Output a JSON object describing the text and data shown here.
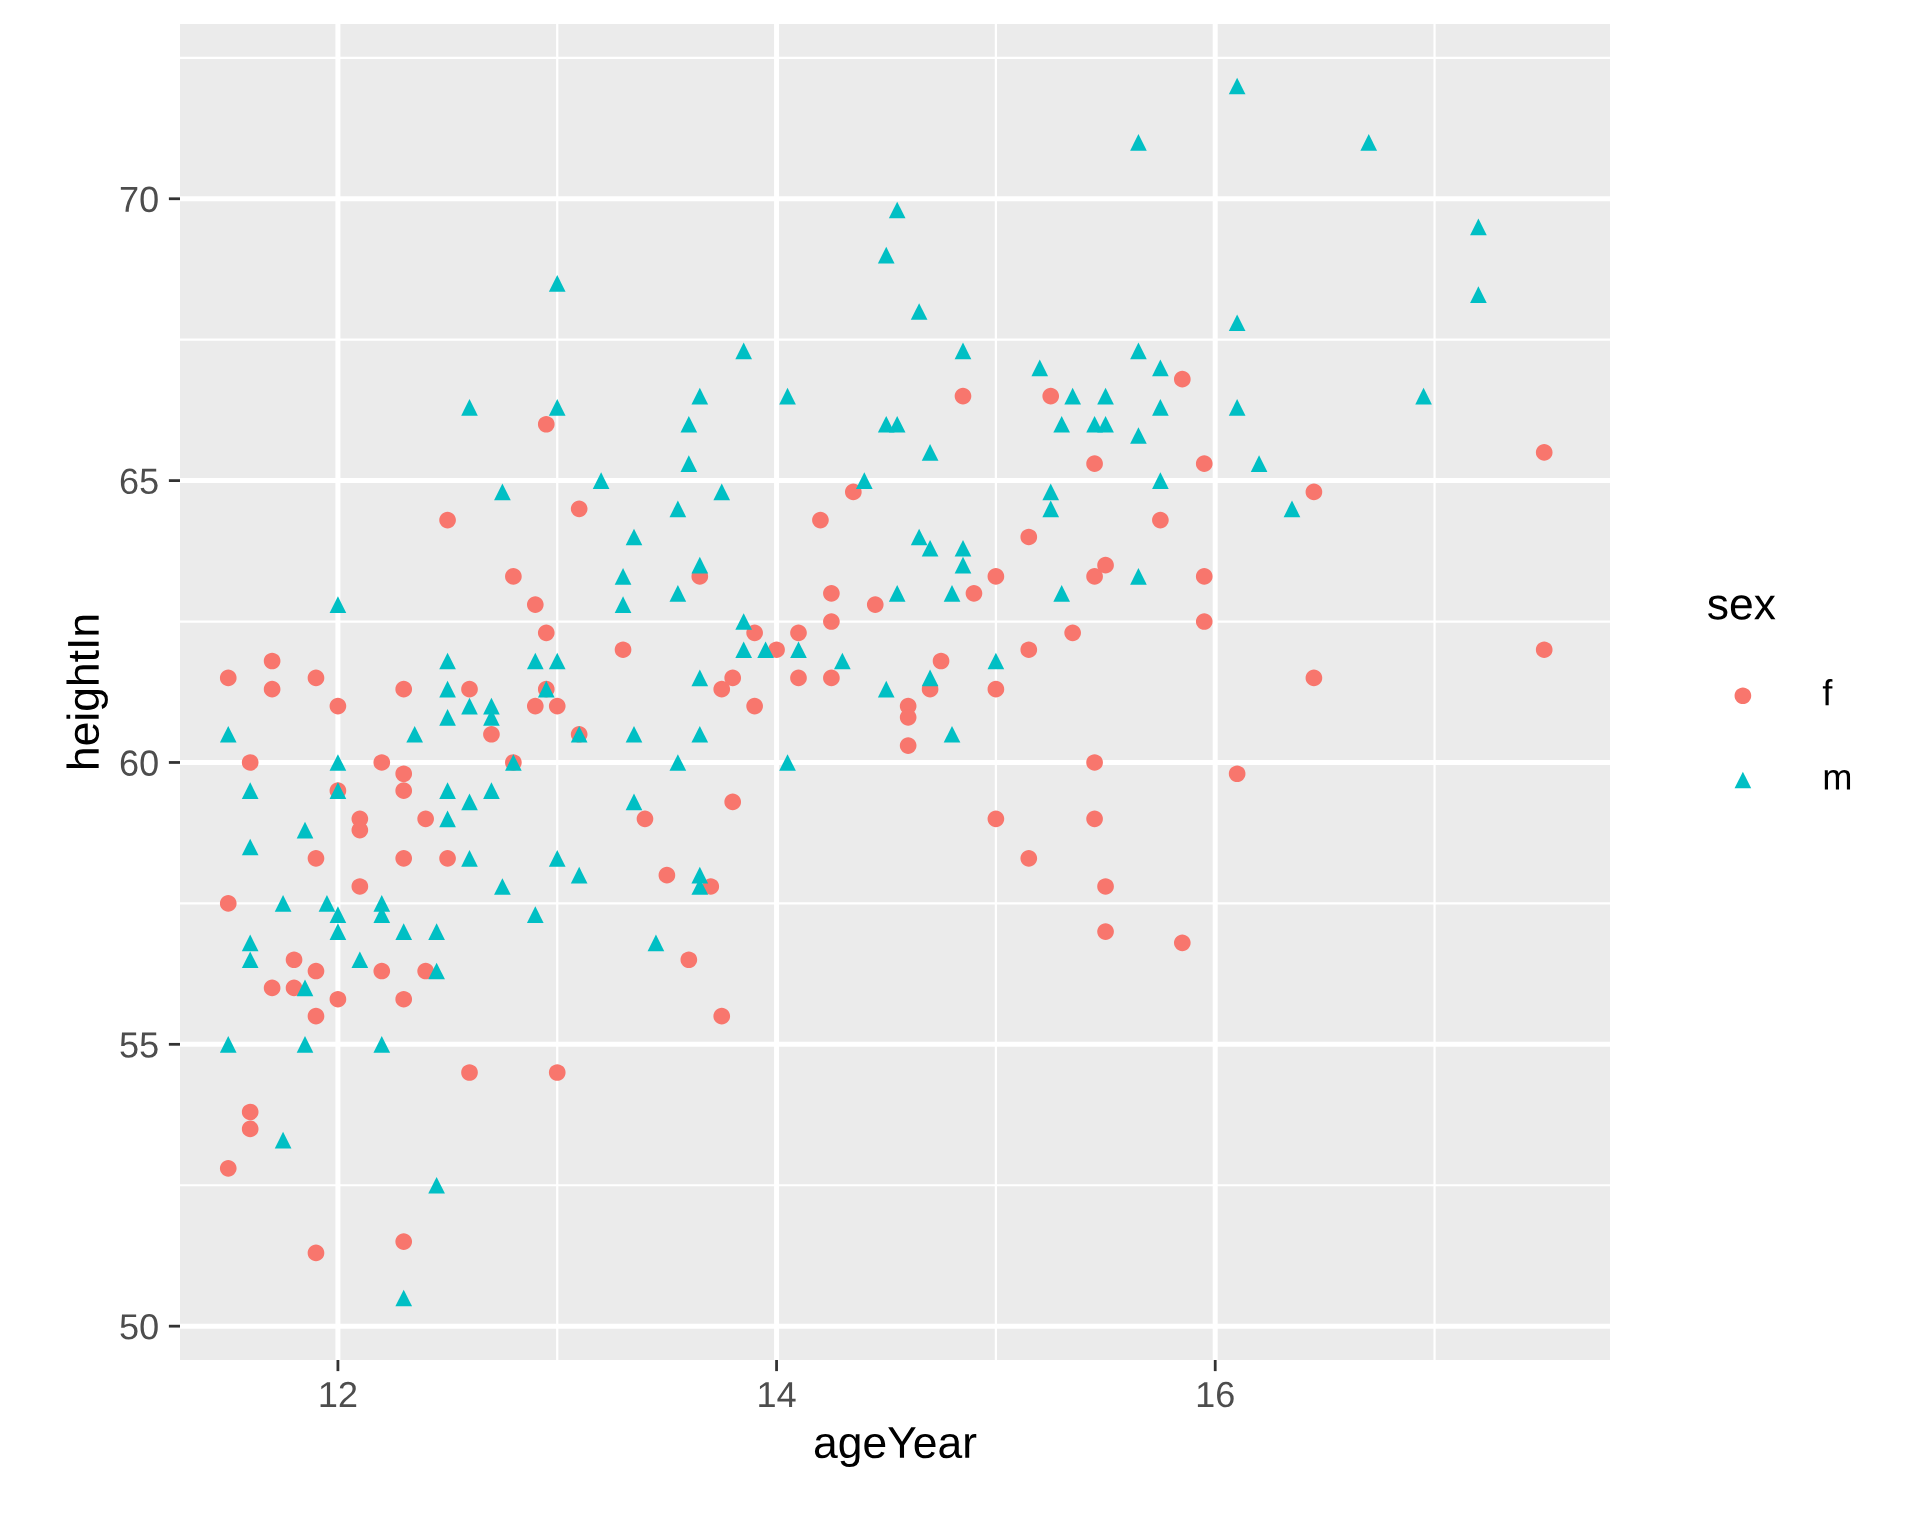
{
  "chart_data": {
    "type": "scatter",
    "xlabel": "ageYear",
    "ylabel": "heightIn",
    "legend_title": "sex",
    "legend": "right",
    "grid": true,
    "xlim": [
      11.28,
      17.8
    ],
    "ylim": [
      49.4,
      73.1
    ],
    "xticks": [
      12,
      14,
      16
    ],
    "yticks": [
      50,
      55,
      60,
      65,
      70
    ],
    "series": [
      {
        "name": "f",
        "color": "#f8766d",
        "marker": "circle",
        "x": [
          11.5,
          11.5,
          11.5,
          11.6,
          11.6,
          11.6,
          11.7,
          11.7,
          11.7,
          11.8,
          11.8,
          11.9,
          11.9,
          11.9,
          11.9,
          11.9,
          12.0,
          12.0,
          12.0,
          12.1,
          12.1,
          12.1,
          12.2,
          12.2,
          12.3,
          12.3,
          12.3,
          12.3,
          12.3,
          12.3,
          12.4,
          12.4,
          12.5,
          12.5,
          12.6,
          12.6,
          12.7,
          12.8,
          12.8,
          12.9,
          12.9,
          12.95,
          12.95,
          12.95,
          13.0,
          13.0,
          13.1,
          13.1,
          13.3,
          13.4,
          13.5,
          13.6,
          13.65,
          13.7,
          13.75,
          13.75,
          13.8,
          13.8,
          13.9,
          13.9,
          14.0,
          14.1,
          14.1,
          14.2,
          14.25,
          14.25,
          14.25,
          14.35,
          14.45,
          14.6,
          14.6,
          14.6,
          14.7,
          14.75,
          14.85,
          14.9,
          15.0,
          15.0,
          15.0,
          15.15,
          15.15,
          15.15,
          15.25,
          15.35,
          15.45,
          15.45,
          15.45,
          15.45,
          15.5,
          15.5,
          15.5,
          15.75,
          15.85,
          15.85,
          15.95,
          15.95,
          15.95,
          16.1,
          16.45,
          16.45,
          17.5,
          17.5
        ],
        "values": [
          61.5,
          57.5,
          52.8,
          60.0,
          53.8,
          53.5,
          61.8,
          61.3,
          56.0,
          56.5,
          56.0,
          61.5,
          58.3,
          56.3,
          55.5,
          51.3,
          61.0,
          59.5,
          55.8,
          59.0,
          58.8,
          57.8,
          60.0,
          56.3,
          61.3,
          59.8,
          59.5,
          58.3,
          55.8,
          51.5,
          59.0,
          56.3,
          64.3,
          58.3,
          61.3,
          54.5,
          60.5,
          63.3,
          60.0,
          62.8,
          61.0,
          66.0,
          62.3,
          61.3,
          54.5,
          61.0,
          64.5,
          60.5,
          62.0,
          59.0,
          58.0,
          56.5,
          63.3,
          57.8,
          55.5,
          61.3,
          59.3,
          61.5,
          61.0,
          62.3,
          62.0,
          61.5,
          62.3,
          64.3,
          63.0,
          62.5,
          61.5,
          64.8,
          62.8,
          61.0,
          60.8,
          60.3,
          61.3,
          61.8,
          66.5,
          63.0,
          63.3,
          61.3,
          59.0,
          62.0,
          58.3,
          64.0,
          66.5,
          62.3,
          65.3,
          63.3,
          60.0,
          59.0,
          63.5,
          57.8,
          57.0,
          64.3,
          66.8,
          56.8,
          65.3,
          63.3,
          62.5,
          59.8,
          64.8,
          61.5,
          65.5,
          62.0
        ]
      },
      {
        "name": "m",
        "color": "#00bfc4",
        "marker": "triangle",
        "x": [
          11.5,
          11.5,
          11.6,
          11.6,
          11.6,
          11.6,
          11.75,
          11.75,
          11.85,
          11.85,
          11.85,
          11.95,
          12.0,
          12.0,
          12.0,
          12.0,
          12.0,
          12.1,
          12.2,
          12.2,
          12.2,
          12.3,
          12.3,
          12.35,
          12.45,
          12.45,
          12.45,
          12.5,
          12.5,
          12.5,
          12.5,
          12.5,
          12.6,
          12.6,
          12.6,
          12.6,
          12.7,
          12.7,
          12.7,
          12.75,
          12.75,
          12.8,
          12.9,
          12.9,
          12.95,
          13.0,
          13.0,
          13.0,
          13.0,
          13.1,
          13.1,
          13.2,
          13.3,
          13.3,
          13.35,
          13.35,
          13.35,
          13.45,
          13.55,
          13.55,
          13.55,
          13.6,
          13.6,
          13.65,
          13.65,
          13.65,
          13.65,
          13.65,
          13.65,
          13.75,
          13.85,
          13.85,
          13.85,
          13.95,
          14.05,
          14.05,
          14.1,
          14.3,
          14.4,
          14.5,
          14.5,
          14.5,
          14.55,
          14.55,
          14.55,
          14.65,
          14.65,
          14.7,
          14.7,
          14.7,
          14.8,
          14.8,
          14.85,
          14.85,
          14.85,
          15.0,
          15.2,
          15.25,
          15.25,
          15.3,
          15.3,
          15.35,
          15.45,
          15.5,
          15.5,
          15.65,
          15.65,
          15.65,
          15.65,
          15.75,
          15.75,
          15.75,
          16.1,
          16.1,
          16.1,
          16.2,
          16.35,
          16.7,
          16.95,
          17.2,
          17.2
        ],
        "values": [
          60.5,
          55.0,
          59.5,
          58.5,
          56.8,
          56.5,
          57.5,
          53.3,
          58.8,
          56.0,
          55.0,
          57.5,
          62.8,
          60.0,
          59.5,
          57.3,
          57.0,
          56.5,
          57.5,
          57.3,
          55.0,
          57.0,
          50.5,
          60.5,
          57.0,
          56.3,
          52.5,
          61.8,
          61.3,
          60.8,
          59.5,
          59.0,
          66.3,
          61.0,
          59.3,
          58.3,
          61.0,
          60.8,
          59.5,
          64.8,
          57.8,
          60.0,
          61.8,
          57.3,
          61.3,
          68.5,
          66.3,
          61.8,
          58.3,
          60.5,
          58.0,
          65.0,
          63.3,
          62.8,
          64.0,
          60.5,
          59.3,
          56.8,
          64.5,
          63.0,
          60.0,
          66.0,
          65.3,
          66.5,
          63.5,
          61.5,
          60.5,
          58.0,
          57.8,
          64.8,
          67.3,
          62.5,
          62.0,
          62.0,
          66.5,
          60.0,
          62.0,
          61.8,
          65.0,
          69.0,
          66.0,
          61.3,
          69.8,
          66.0,
          63.0,
          68.0,
          64.0,
          65.5,
          63.8,
          61.5,
          63.0,
          60.5,
          67.3,
          63.8,
          63.5,
          61.8,
          67.0,
          64.8,
          64.5,
          66.0,
          63.0,
          66.5,
          66.0,
          66.5,
          66.0,
          71.0,
          67.3,
          65.8,
          63.3,
          67.0,
          66.3,
          65.0,
          72.0,
          67.8,
          66.3,
          65.3,
          64.5,
          71.0,
          66.5,
          69.5,
          68.3
        ]
      }
    ]
  }
}
